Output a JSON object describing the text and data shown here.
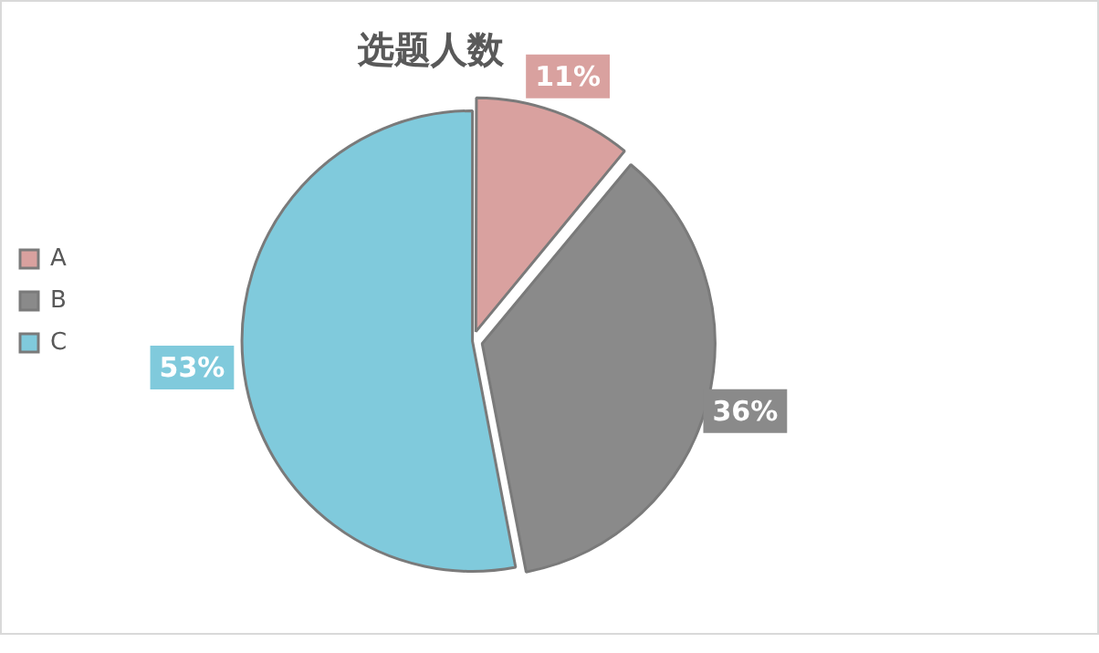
{
  "chart_data": {
    "type": "pie",
    "title": "选题人数",
    "categories": [
      "A",
      "B",
      "C"
    ],
    "values": [
      11,
      36,
      53
    ],
    "colors": [
      "#d9a19f",
      "#8a8a8a",
      "#80cadc"
    ],
    "legend": "left",
    "value_labels": [
      "11%",
      "36%",
      "53%"
    ]
  }
}
